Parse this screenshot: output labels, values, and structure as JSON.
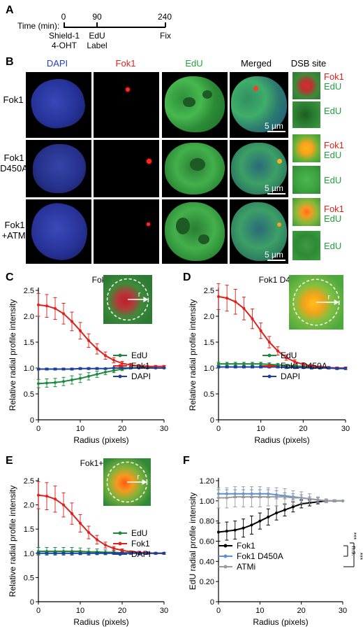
{
  "panels": {
    "a": "A",
    "b": "B",
    "c": "C",
    "d": "D",
    "e": "E",
    "f": "F"
  },
  "timeline": {
    "time_label": "Time (min):",
    "ticks": [
      {
        "time": "0",
        "lines": [
          "Shield-1",
          "4-OHT"
        ]
      },
      {
        "time": "90",
        "lines": [
          "EdU",
          "Label"
        ]
      },
      {
        "time": "240",
        "lines": [
          "Fix"
        ]
      }
    ]
  },
  "micro": {
    "columns": [
      {
        "label": "DAPI",
        "color": "#1f3fbf"
      },
      {
        "label": "Fok1",
        "color": "#e0201a"
      },
      {
        "label": "EdU",
        "color": "#1fa33a"
      },
      {
        "label": "Merged",
        "color": "#000000"
      },
      {
        "label": "DSB site",
        "color": "#000000"
      }
    ],
    "rows": [
      {
        "label_lines": [
          "Fok1"
        ],
        "scale_bar": "5 µm",
        "dsb_top": [
          "Fok1",
          "EdU"
        ],
        "dsb_bottom": "EdU"
      },
      {
        "label_lines": [
          "Fok1",
          "D450A"
        ],
        "scale_bar": "5 µm",
        "dsb_top": [
          "Fok1",
          "EdU"
        ],
        "dsb_bottom": "EdU"
      },
      {
        "label_lines": [
          "Fok1",
          "+ATMi"
        ],
        "scale_bar": "5 µm",
        "dsb_top": [
          "Fok1",
          "EdU"
        ],
        "dsb_bottom": "EdU"
      }
    ]
  },
  "colors": {
    "edu": "#1a8a3a",
    "fok1": "#e0201a",
    "dapi": "#1f3f9f",
    "black": "#000000",
    "d450a": "#5b8fd6",
    "atmi": "#9a9a9a"
  },
  "chart_data": [
    {
      "panel": "C",
      "type": "line",
      "title": "Fok1",
      "xlabel": "Radius (pixels)",
      "ylabel": "Relative radial profile intensity",
      "xlim": [
        0,
        30
      ],
      "ylim": [
        0,
        2.5
      ],
      "xticks": [
        0,
        10,
        20,
        30
      ],
      "yticks": [
        0,
        0.5,
        1.0,
        1.5,
        2.0,
        2.5
      ],
      "ytick_labels": [
        "0",
        "0.5",
        "1.0",
        "1.5",
        "2.0",
        "2.5"
      ],
      "inset": "fok1",
      "inset_label": "r",
      "legend": "bottom-right",
      "x": [
        0,
        2,
        4,
        6,
        8,
        10,
        12,
        14,
        16,
        18,
        20,
        22,
        24,
        26,
        28,
        30
      ],
      "series": [
        {
          "name": "EdU",
          "color": "#1a8a3a",
          "values": [
            0.7,
            0.71,
            0.72,
            0.74,
            0.77,
            0.8,
            0.84,
            0.88,
            0.92,
            0.95,
            0.98,
            1.0,
            1.01,
            1.01,
            1.0,
            1.0
          ],
          "err": [
            0.08,
            0.08,
            0.08,
            0.08,
            0.08,
            0.08,
            0.07,
            0.06,
            0.05,
            0.04,
            0.03,
            0.02,
            0.02,
            0.01,
            0.01,
            0.01
          ]
        },
        {
          "name": "Fok1",
          "color": "#e0201a",
          "values": [
            2.22,
            2.2,
            2.15,
            2.05,
            1.9,
            1.72,
            1.53,
            1.37,
            1.24,
            1.15,
            1.09,
            1.06,
            1.04,
            1.03,
            1.03,
            1.03
          ],
          "err": [
            0.22,
            0.22,
            0.21,
            0.2,
            0.18,
            0.16,
            0.13,
            0.1,
            0.07,
            0.05,
            0.04,
            0.03,
            0.02,
            0.02,
            0.02,
            0.02
          ]
        },
        {
          "name": "DAPI",
          "color": "#1f3f9f",
          "values": [
            0.98,
            0.98,
            0.98,
            0.98,
            0.98,
            0.99,
            0.99,
            0.99,
            0.99,
            1.0,
            1.0,
            1.0,
            1.0,
            1.0,
            1.0,
            1.0
          ],
          "err": [
            0.02,
            0.02,
            0.02,
            0.02,
            0.02,
            0.02,
            0.02,
            0.02,
            0.01,
            0.01,
            0.01,
            0.01,
            0.01,
            0.01,
            0.01,
            0.01
          ]
        }
      ]
    },
    {
      "panel": "D",
      "type": "line",
      "title": "Fok1 D450A",
      "xlabel": "Radius (pixels)",
      "ylabel": "Relative radial profile intensity",
      "xlim": [
        0,
        30
      ],
      "ylim": [
        0,
        2.5
      ],
      "xticks": [
        0,
        10,
        20,
        30
      ],
      "yticks": [
        0,
        0.5,
        1.0,
        1.5,
        2.0,
        2.5
      ],
      "ytick_labels": [
        "0",
        "0.5",
        "1.0",
        "1.5",
        "2.0",
        "2.5"
      ],
      "inset": "d450a",
      "inset_label": "r",
      "legend": "bottom-right",
      "x": [
        0,
        2,
        4,
        6,
        8,
        10,
        12,
        14,
        16,
        18,
        20,
        22,
        24,
        26,
        28,
        30
      ],
      "series": [
        {
          "name": "EdU",
          "color": "#1a8a3a",
          "values": [
            1.08,
            1.08,
            1.08,
            1.08,
            1.08,
            1.08,
            1.07,
            1.06,
            1.05,
            1.04,
            1.03,
            1.02,
            1.01,
            1.0,
            1.0,
            1.0
          ],
          "err": [
            0.03,
            0.03,
            0.03,
            0.03,
            0.03,
            0.03,
            0.03,
            0.03,
            0.02,
            0.02,
            0.02,
            0.02,
            0.02,
            0.02,
            0.02,
            0.02
          ]
        },
        {
          "name": "Fok1 D450A",
          "color": "#e0201a",
          "values": [
            2.38,
            2.35,
            2.28,
            2.15,
            1.95,
            1.72,
            1.5,
            1.33,
            1.2,
            1.12,
            1.07,
            1.04,
            1.02,
            1.01,
            1.0,
            1.0
          ],
          "err": [
            0.25,
            0.25,
            0.24,
            0.22,
            0.19,
            0.15,
            0.11,
            0.08,
            0.05,
            0.04,
            0.03,
            0.02,
            0.02,
            0.02,
            0.02,
            0.02
          ]
        },
        {
          "name": "DAPI",
          "color": "#1f3f9f",
          "values": [
            1.02,
            1.02,
            1.02,
            1.02,
            1.02,
            1.02,
            1.02,
            1.02,
            1.01,
            1.01,
            1.01,
            1.0,
            1.0,
            1.0,
            0.99,
            0.99
          ],
          "err": [
            0.02,
            0.02,
            0.02,
            0.02,
            0.02,
            0.02,
            0.02,
            0.02,
            0.02,
            0.02,
            0.02,
            0.02,
            0.02,
            0.02,
            0.02,
            0.02
          ]
        }
      ]
    },
    {
      "panel": "E",
      "type": "line",
      "title": "Fok1+ATMi",
      "xlabel": "Radius (pixels)",
      "ylabel": "Relative radial profile intensity",
      "xlim": [
        0,
        30
      ],
      "ylim": [
        0,
        2.5
      ],
      "xticks": [
        0,
        10,
        20,
        30
      ],
      "yticks": [
        0,
        0.5,
        1.0,
        1.5,
        2.0,
        2.5
      ],
      "ytick_labels": [
        "0",
        "0.5",
        "1.0",
        "1.5",
        "2.0",
        "2.5"
      ],
      "inset": "atmi",
      "inset_label": "r",
      "legend": "bottom-right",
      "x": [
        0,
        2,
        4,
        6,
        8,
        10,
        12,
        14,
        16,
        18,
        20,
        22,
        24,
        26,
        28,
        30
      ],
      "series": [
        {
          "name": "EdU",
          "color": "#1a8a3a",
          "values": [
            1.04,
            1.04,
            1.04,
            1.04,
            1.04,
            1.04,
            1.03,
            1.03,
            1.02,
            1.02,
            1.01,
            1.01,
            1.0,
            1.0,
            1.0,
            1.0
          ],
          "err": [
            0.08,
            0.08,
            0.08,
            0.08,
            0.08,
            0.07,
            0.07,
            0.06,
            0.05,
            0.04,
            0.03,
            0.03,
            0.02,
            0.02,
            0.02,
            0.02
          ]
        },
        {
          "name": "Fok1",
          "color": "#e0201a",
          "values": [
            2.2,
            2.18,
            2.12,
            2.0,
            1.82,
            1.62,
            1.43,
            1.28,
            1.17,
            1.1,
            1.06,
            1.03,
            1.02,
            1.01,
            1.0,
            1.0
          ],
          "err": [
            0.28,
            0.28,
            0.27,
            0.25,
            0.22,
            0.18,
            0.13,
            0.09,
            0.06,
            0.04,
            0.03,
            0.02,
            0.02,
            0.02,
            0.02,
            0.02
          ]
        },
        {
          "name": "DAPI",
          "color": "#1f3f9f",
          "values": [
            1.0,
            1.0,
            1.0,
            1.0,
            1.0,
            1.0,
            1.0,
            1.0,
            1.0,
            1.0,
            1.0,
            1.0,
            1.0,
            1.0,
            1.0,
            1.0
          ],
          "err": [
            0.02,
            0.02,
            0.02,
            0.02,
            0.02,
            0.02,
            0.02,
            0.02,
            0.02,
            0.02,
            0.02,
            0.02,
            0.02,
            0.02,
            0.02,
            0.02
          ]
        }
      ]
    },
    {
      "panel": "F",
      "type": "line",
      "title": "",
      "xlabel": "Radius (pixels)",
      "ylabel": "EdU radial profile intensity",
      "xlim": [
        0,
        30
      ],
      "ylim": [
        0,
        1.2
      ],
      "xticks": [
        0,
        10,
        20,
        30
      ],
      "yticks": [
        0,
        0.2,
        0.4,
        0.6,
        0.8,
        1.0,
        1.2
      ],
      "ytick_labels": [
        "0",
        "0.20",
        "0.40",
        "0.60",
        "0.80",
        "1.00",
        "1.20"
      ],
      "inset": "",
      "legend": "bottom-right",
      "significance": [
        "n.s.",
        "***",
        "***"
      ],
      "x": [
        0,
        2,
        4,
        6,
        8,
        10,
        12,
        14,
        16,
        18,
        20,
        22,
        24,
        26,
        28,
        30
      ],
      "series": [
        {
          "name": "Fok1",
          "color": "#000000",
          "values": [
            0.69,
            0.7,
            0.71,
            0.73,
            0.76,
            0.8,
            0.84,
            0.88,
            0.91,
            0.94,
            0.97,
            0.98,
            0.99,
            1.0,
            1.0,
            1.0
          ],
          "err": [
            0.09,
            0.09,
            0.09,
            0.09,
            0.09,
            0.08,
            0.08,
            0.07,
            0.06,
            0.05,
            0.04,
            0.03,
            0.02,
            0.01,
            0.01,
            0.0
          ]
        },
        {
          "name": "Fok1 D450A",
          "color": "#5b8fd6",
          "values": [
            1.07,
            1.07,
            1.07,
            1.07,
            1.07,
            1.07,
            1.07,
            1.06,
            1.05,
            1.04,
            1.03,
            1.02,
            1.01,
            1.0,
            1.0,
            1.0
          ],
          "err": [
            0.04,
            0.04,
            0.04,
            0.04,
            0.04,
            0.04,
            0.04,
            0.04,
            0.03,
            0.03,
            0.03,
            0.02,
            0.02,
            0.01,
            0.01,
            0.0
          ]
        },
        {
          "name": "ATMi",
          "color": "#9a9a9a",
          "values": [
            1.03,
            1.03,
            1.04,
            1.04,
            1.04,
            1.04,
            1.04,
            1.04,
            1.04,
            1.03,
            1.03,
            1.02,
            1.01,
            1.0,
            1.0,
            1.0
          ],
          "err": [
            0.1,
            0.1,
            0.1,
            0.1,
            0.1,
            0.1,
            0.09,
            0.09,
            0.08,
            0.07,
            0.06,
            0.05,
            0.03,
            0.02,
            0.01,
            0.0
          ]
        }
      ]
    }
  ]
}
